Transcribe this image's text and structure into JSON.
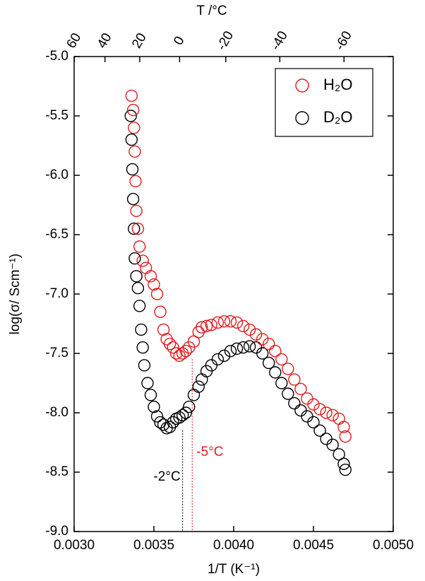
{
  "chart_data": {
    "type": "scatter",
    "xlabel": "1/T (K⁻¹)",
    "ylabel": "log(σ/ Scm⁻¹)",
    "x2label": "T /°C",
    "xlim": [
      0.003,
      0.005
    ],
    "xticks": [
      {
        "value": 0.003,
        "label": "0.0030"
      },
      {
        "value": 0.0035,
        "label": "0.0035"
      },
      {
        "value": 0.004,
        "label": "0.0040"
      },
      {
        "value": 0.0045,
        "label": "0.0045"
      },
      {
        "value": 0.005,
        "label": "0.0050"
      }
    ],
    "ylim": [
      -9,
      -5
    ],
    "yticks": [
      {
        "value": -5,
        "label": "-5.0"
      },
      -5.5,
      {
        "value": -6,
        "label": "-6.0"
      },
      -6.5,
      {
        "value": -7,
        "label": "-7.0"
      },
      -7.5,
      {
        "value": -8,
        "label": "-8.0"
      },
      -8.5,
      {
        "value": -9,
        "label": "-9.0"
      }
    ],
    "x2ticks": [
      60,
      40,
      20,
      0,
      -20,
      -40,
      -60
    ],
    "legend": "upper right",
    "series": [
      {
        "name": "H₂O",
        "color": "#e31a1c",
        "x": [
          0.00336,
          0.00337,
          0.003375,
          0.00338,
          0.003385,
          0.00339,
          0.0034,
          0.00341,
          0.00343,
          0.00345,
          0.00348,
          0.0035,
          0.00352,
          0.00354,
          0.00356,
          0.00358,
          0.0036,
          0.00362,
          0.00364,
          0.00366,
          0.00368,
          0.0037,
          0.00372,
          0.00375,
          0.00378,
          0.0038,
          0.00383,
          0.00386,
          0.0039,
          0.00394,
          0.00398,
          0.00402,
          0.00406,
          0.0041,
          0.00414,
          0.00418,
          0.00422,
          0.00426,
          0.0043,
          0.00434,
          0.00438,
          0.00442,
          0.00446,
          0.0045,
          0.00454,
          0.00458,
          0.00462,
          0.00466,
          0.00469,
          0.0047
        ],
        "values": [
          -5.33,
          -5.45,
          -5.6,
          -5.8,
          -6.05,
          -6.3,
          -6.45,
          -6.6,
          -6.72,
          -6.78,
          -6.85,
          -6.92,
          -7.0,
          -7.15,
          -7.3,
          -7.38,
          -7.42,
          -7.45,
          -7.5,
          -7.52,
          -7.5,
          -7.48,
          -7.45,
          -7.4,
          -7.32,
          -7.28,
          -7.27,
          -7.26,
          -7.24,
          -7.23,
          -7.23,
          -7.24,
          -7.27,
          -7.3,
          -7.34,
          -7.38,
          -7.42,
          -7.48,
          -7.55,
          -7.63,
          -7.72,
          -7.8,
          -7.88,
          -7.93,
          -7.97,
          -8.0,
          -8.02,
          -8.05,
          -8.12,
          -8.2
        ]
      },
      {
        "name": "D₂O",
        "color": "#000000",
        "x": [
          0.003355,
          0.00336,
          0.003365,
          0.00337,
          0.003375,
          0.00338,
          0.00339,
          0.0034,
          0.00341,
          0.00342,
          0.00343,
          0.00344,
          0.00346,
          0.00348,
          0.0035,
          0.00352,
          0.00354,
          0.00356,
          0.00358,
          0.0036,
          0.00362,
          0.00364,
          0.00366,
          0.00368,
          0.0037,
          0.00372,
          0.00375,
          0.00378,
          0.0038,
          0.00383,
          0.00386,
          0.0039,
          0.00394,
          0.00398,
          0.00402,
          0.00406,
          0.0041,
          0.00414,
          0.00418,
          0.00422,
          0.00426,
          0.0043,
          0.00434,
          0.00438,
          0.00442,
          0.00446,
          0.0045,
          0.00454,
          0.00458,
          0.00462,
          0.00466,
          0.00469,
          0.0047
        ],
        "values": [
          -5.5,
          -5.7,
          -5.95,
          -6.2,
          -6.45,
          -6.7,
          -6.85,
          -6.95,
          -7.1,
          -7.3,
          -7.45,
          -7.6,
          -7.75,
          -7.85,
          -7.95,
          -8.03,
          -8.08,
          -8.1,
          -8.13,
          -8.12,
          -8.08,
          -8.05,
          -8.04,
          -8.02,
          -8.0,
          -7.95,
          -7.85,
          -7.78,
          -7.72,
          -7.65,
          -7.6,
          -7.55,
          -7.52,
          -7.48,
          -7.46,
          -7.45,
          -7.44,
          -7.45,
          -7.5,
          -7.58,
          -7.66,
          -7.75,
          -7.84,
          -7.92,
          -7.98,
          -8.03,
          -8.08,
          -8.15,
          -8.22,
          -8.27,
          -8.35,
          -8.43,
          -8.48
        ]
      }
    ],
    "annotations": [
      {
        "text": "-2°C",
        "x": 0.00368,
        "y": -8.1,
        "color": "#000000"
      },
      {
        "text": "-5°C",
        "x": 0.00374,
        "y": -7.5,
        "color": "#e31a1c"
      }
    ]
  }
}
